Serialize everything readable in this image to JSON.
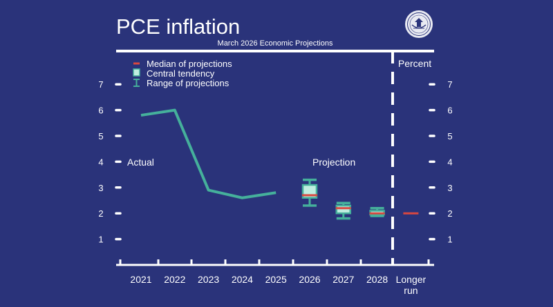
{
  "title": "PCE inflation",
  "subtitle": "March 2026 Economic Projections",
  "unit_label": "Percent",
  "seal_icon": "federal-reserve-seal-icon",
  "colors": {
    "background": "#2a337a",
    "line": "#45b09b",
    "box_fill": "#bfeee0",
    "median": "#d9473f",
    "axis": "#ffffff"
  },
  "chart_data": {
    "type": "line",
    "title": "PCE inflation",
    "subtitle": "March 2026 Economic Projections",
    "ylabel": "Percent",
    "xlabel": "",
    "ylim": [
      0,
      7
    ],
    "yticks": [
      1,
      2,
      3,
      4,
      5,
      6,
      7
    ],
    "categories": [
      "2021",
      "2022",
      "2023",
      "2024",
      "2025",
      "2026",
      "2027",
      "2028",
      "Longer run"
    ],
    "annotations": {
      "actual": "Actual",
      "projection": "Projection"
    },
    "legend": [
      {
        "name": "Median of projections",
        "icon": "median-dash-icon"
      },
      {
        "name": "Central tendency",
        "icon": "central-tendency-box-icon"
      },
      {
        "name": "Range of projections",
        "icon": "range-bracket-icon"
      }
    ],
    "actual": {
      "x": [
        "2021",
        "2022",
        "2023",
        "2024",
        "2025"
      ],
      "values": [
        5.8,
        6.0,
        2.9,
        2.6,
        2.8
      ]
    },
    "projections": [
      {
        "x": "2026",
        "range_low": 2.3,
        "range_high": 3.3,
        "central_low": 2.6,
        "central_high": 3.1,
        "median": 2.7
      },
      {
        "x": "2027",
        "range_low": 1.8,
        "range_high": 2.4,
        "central_low": 2.0,
        "central_high": 2.3,
        "median": 2.2
      },
      {
        "x": "2028",
        "range_low": 1.9,
        "range_high": 2.2,
        "central_low": 1.95,
        "central_high": 2.1,
        "median": 2.0
      },
      {
        "x": "Longer run",
        "median": 2.0
      }
    ]
  }
}
